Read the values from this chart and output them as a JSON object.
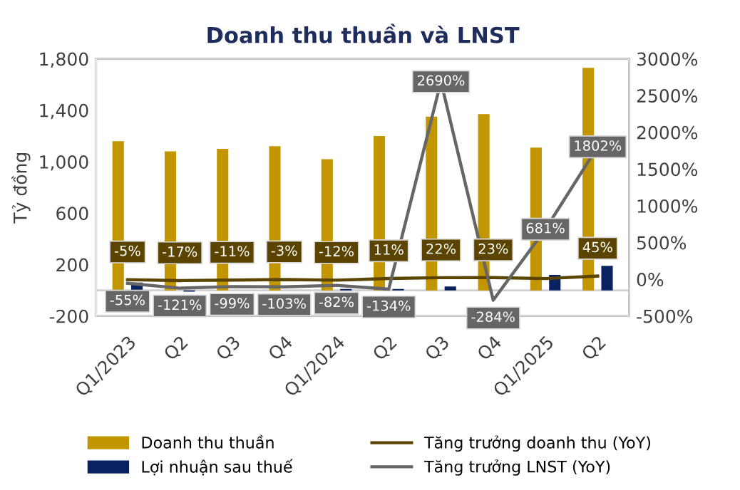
{
  "chart_data": {
    "type": "bar",
    "title": "Doanh thu thuần và LNST",
    "ylabel": "Tỷ đồng",
    "categories": [
      "Q1/2023",
      "Q2",
      "Q3",
      "Q4",
      "Q1/2024",
      "Q2",
      "Q3",
      "Q4",
      "Q1/2025",
      "Q2"
    ],
    "series": [
      {
        "name": "Doanh thu thuần",
        "color": "#c29600",
        "values": [
          1160,
          1080,
          1100,
          1120,
          1020,
          1200,
          1350,
          1370,
          1110,
          1730
        ]
      },
      {
        "name": "Lợi nhuận sau thuế",
        "color": "#0a2360",
        "values": [
          60,
          -10,
          0,
          0,
          10,
          10,
          30,
          0,
          120,
          190
        ]
      },
      {
        "name": "Tăng trưởng doanh thu (YoY)",
        "type": "line",
        "axis": "y2",
        "color": "#5a4400",
        "values": [
          -5,
          -17,
          -11,
          -3,
          -12,
          11,
          22,
          23,
          10,
          45
        ],
        "value_labels": [
          "-5%",
          "-17%",
          "-11%",
          "-3%",
          "-12%",
          "11%",
          "22%",
          "23%",
          null,
          "45%"
        ]
      },
      {
        "name": "Tăng trưởng LNST (YoY)",
        "type": "line",
        "axis": "y2",
        "color": "#666666",
        "values": [
          -55,
          -121,
          -99,
          -103,
          -82,
          -134,
          2690,
          -284,
          681,
          1802
        ],
        "value_labels": [
          "-55%",
          "-121%",
          "-99%",
          "-103%",
          "-82%",
          "-134%",
          "2690%",
          "-284%",
          "681%",
          "1802%"
        ]
      }
    ],
    "ylim": [
      -200,
      1800
    ],
    "yticks": [
      {
        "value": -200,
        "label": "-200"
      },
      200,
      {
        "value": 600,
        "label": "600"
      },
      {
        "value": 1000,
        "label": "1,000"
      },
      {
        "value": 1400,
        "label": "1,400"
      },
      {
        "value": 1800,
        "label": "1,800"
      }
    ],
    "y2lim": [
      -500,
      3000
    ],
    "y2ticks": [
      {
        "value": -500,
        "label": "-500%"
      },
      {
        "value": 0,
        "label": "0%"
      },
      {
        "value": 500,
        "label": "500%"
      },
      {
        "value": 1000,
        "label": "1000%"
      },
      {
        "value": 1500,
        "label": "1500%"
      },
      {
        "value": 2000,
        "label": "2000%"
      },
      {
        "value": 2500,
        "label": "2500%"
      },
      {
        "value": 3000,
        "label": "3000%"
      }
    ],
    "grid": false,
    "legend": "bottom",
    "line_style": "solid",
    "marker": "none"
  }
}
